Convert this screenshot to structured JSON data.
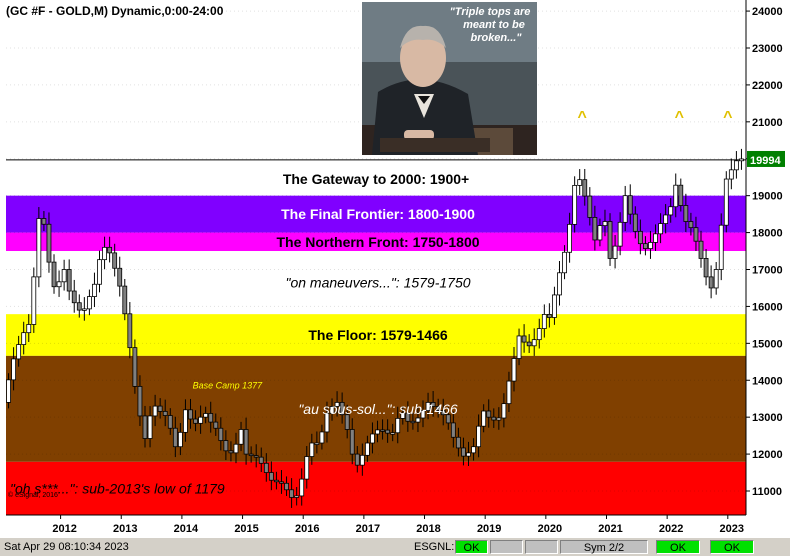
{
  "header": {
    "title": "(GC #F - GOLD,M) Dynamic,0:00-24:00"
  },
  "inset": {
    "quote": [
      "\"Triple tops are",
      "meant to be",
      "broken...\""
    ]
  },
  "chart_data": {
    "type": "candlestick",
    "x_ticks": [
      "2012",
      "2013",
      "2014",
      "2015",
      "2016",
      "2017",
      "2018",
      "2019",
      "2020",
      "2021",
      "2022",
      "2023"
    ],
    "y_ticks": [
      11000,
      12000,
      13000,
      14000,
      15000,
      16000,
      17000,
      18000,
      19000,
      20000,
      21000,
      22000,
      23000,
      24000
    ],
    "ylim": [
      10350,
      24300
    ],
    "last_price": "19994",
    "last_price_value": 19994,
    "gateway_value": 19970,
    "bands": [
      {
        "label": "",
        "from": 19000,
        "to": 19970,
        "color": "#ffffff",
        "text_color": "#000000",
        "italic": false
      },
      {
        "label": "The Final Frontier:  1800-1900",
        "from": 18000,
        "to": 19000,
        "color": "#8000ff",
        "text_color": "#ffffff",
        "italic": false
      },
      {
        "label": "The Northern Front:  1750-1800",
        "from": 17500,
        "to": 18000,
        "color": "#ff00ff",
        "text_color": "#000000",
        "italic": false
      },
      {
        "label": "\"on maneuvers...\":  1579-1750",
        "from": 15790,
        "to": 17500,
        "color": "#ffffff",
        "text_color": "#000000",
        "italic": true
      },
      {
        "label": "The Floor:  1579-1466",
        "from": 14660,
        "to": 15790,
        "color": "#ffff00",
        "text_color": "#000000",
        "italic": false
      },
      {
        "label": "\"au sous-sol...\":  sub-1466",
        "from": 11790,
        "to": 14660,
        "color": "#804000",
        "text_color": "#ffffff",
        "italic": true
      },
      {
        "label": "\"oh s***...\":  sub-2013's low of 1179",
        "from": 10350,
        "to": 11790,
        "color": "#ff0000",
        "text_color": "#000000",
        "italic": true
      }
    ],
    "gateway_label": "The Gateway to 2000:  1900+",
    "annotations": [
      {
        "text": "Base Camp 1377",
        "x": 2014.75,
        "y": 13770
      }
    ],
    "triple_top_marks": [
      {
        "text": "^",
        "x": 2020.6
      },
      {
        "text": "^",
        "x": 2022.2
      },
      {
        "text": "^",
        "x": 2023.0
      }
    ],
    "watermark": "© eSignal, 2016",
    "xlim": [
      2011.1,
      2023.3
    ],
    "anchors": [
      [
        2011.1,
        13400
      ],
      [
        2011.25,
        14500
      ],
      [
        2011.4,
        15200
      ],
      [
        2011.55,
        15600
      ],
      [
        2011.65,
        18000
      ],
      [
        2011.72,
        18800
      ],
      [
        2011.85,
        17200
      ],
      [
        2011.95,
        16400
      ],
      [
        2012.1,
        17000
      ],
      [
        2012.2,
        16300
      ],
      [
        2012.3,
        16000
      ],
      [
        2012.4,
        15800
      ],
      [
        2012.5,
        16200
      ],
      [
        2012.6,
        16600
      ],
      [
        2012.7,
        17400
      ],
      [
        2012.8,
        17700
      ],
      [
        2012.9,
        17200
      ],
      [
        2013.0,
        16700
      ],
      [
        2013.1,
        15800
      ],
      [
        2013.2,
        14700
      ],
      [
        2013.3,
        13400
      ],
      [
        2013.45,
        12300
      ],
      [
        2013.55,
        13400
      ],
      [
        2013.65,
        13200
      ],
      [
        2013.8,
        13000
      ],
      [
        2013.95,
        12100
      ],
      [
        2014.1,
        13200
      ],
      [
        2014.2,
        12900
      ],
      [
        2014.3,
        12800
      ],
      [
        2014.4,
        13200
      ],
      [
        2014.5,
        12900
      ],
      [
        2014.6,
        12700
      ],
      [
        2014.75,
        12100
      ],
      [
        2014.9,
        12000
      ],
      [
        2015.0,
        12800
      ],
      [
        2015.1,
        12000
      ],
      [
        2015.3,
        11900
      ],
      [
        2015.5,
        11300
      ],
      [
        2015.7,
        11200
      ],
      [
        2015.9,
        10700
      ],
      [
        2016.0,
        11200
      ],
      [
        2016.15,
        12300
      ],
      [
        2016.3,
        12300
      ],
      [
        2016.45,
        13200
      ],
      [
        2016.6,
        13400
      ],
      [
        2016.75,
        12800
      ],
      [
        2016.9,
        11600
      ],
      [
        2017.0,
        11900
      ],
      [
        2017.15,
        12500
      ],
      [
        2017.3,
        12700
      ],
      [
        2017.5,
        12500
      ],
      [
        2017.65,
        13200
      ],
      [
        2017.8,
        12800
      ],
      [
        2017.95,
        13000
      ],
      [
        2018.1,
        13400
      ],
      [
        2018.25,
        13200
      ],
      [
        2018.4,
        13000
      ],
      [
        2018.55,
        12300
      ],
      [
        2018.7,
        11900
      ],
      [
        2018.85,
        12200
      ],
      [
        2019.0,
        13200
      ],
      [
        2019.15,
        12900
      ],
      [
        2019.3,
        13000
      ],
      [
        2019.45,
        14100
      ],
      [
        2019.6,
        15200
      ],
      [
        2019.75,
        14900
      ],
      [
        2019.9,
        15200
      ],
      [
        2020.0,
        15800
      ],
      [
        2020.1,
        15700
      ],
      [
        2020.25,
        16800
      ],
      [
        2020.4,
        17800
      ],
      [
        2020.55,
        19700
      ],
      [
        2020.7,
        18900
      ],
      [
        2020.85,
        17800
      ],
      [
        2021.0,
        18500
      ],
      [
        2021.1,
        17300
      ],
      [
        2021.2,
        17700
      ],
      [
        2021.35,
        19000
      ],
      [
        2021.5,
        18100
      ],
      [
        2021.65,
        17500
      ],
      [
        2021.8,
        17800
      ],
      [
        2021.95,
        18300
      ],
      [
        2022.1,
        18700
      ],
      [
        2022.2,
        19400
      ],
      [
        2022.3,
        18400
      ],
      [
        2022.45,
        18100
      ],
      [
        2022.55,
        17600
      ],
      [
        2022.7,
        16700
      ],
      [
        2022.8,
        16400
      ],
      [
        2022.9,
        17600
      ],
      [
        2023.0,
        19400
      ],
      [
        2023.1,
        19700
      ],
      [
        2023.2,
        19994
      ]
    ]
  },
  "statusbar": {
    "timestamp": "Sat Apr 29 08:10:34 2023",
    "feed": "ESGNL:",
    "ok1": "OK",
    "sym": "Sym 2/2",
    "ok2": "OK",
    "ok3": "OK"
  }
}
